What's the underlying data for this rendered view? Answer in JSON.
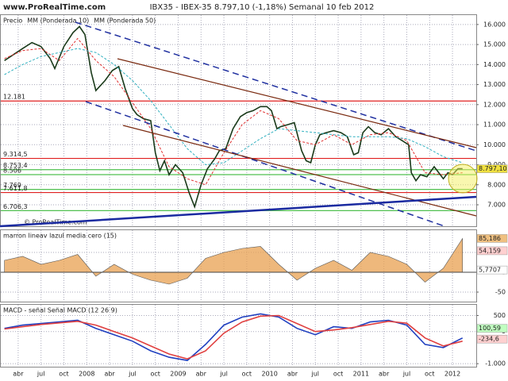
{
  "site": "www.ProRealTime.com",
  "header": "IBX35 - IBEX-35   8.797,10 (-1,18%)   Semanal  10 feb 2012",
  "watermark": "© ProRealTime.com",
  "chart_data": [
    {
      "type": "line",
      "ylim": [
        5930,
        16470
      ],
      "yticks": [
        {
          "value": 7000,
          "label": "7.000"
        },
        {
          "value": 8000,
          "label": "8.000"
        },
        {
          "value": 9000,
          "label": "9.000"
        },
        {
          "value": 10000,
          "label": "10.000"
        },
        {
          "value": 11000,
          "label": "11.000"
        },
        {
          "value": 12000,
          "label": "12.000"
        },
        {
          "value": 13000,
          "label": "13.000"
        },
        {
          "value": 14000,
          "label": "14.000"
        },
        {
          "value": 15000,
          "label": "15.000"
        },
        {
          "value": 16000,
          "label": "16.000"
        }
      ],
      "series": [
        {
          "name": "Precio",
          "color": "#1a3a1a",
          "x": [
            2007.1,
            2007.2,
            2007.3,
            2007.4,
            2007.5,
            2007.6,
            2007.65,
            2007.75,
            2007.85,
            2007.92,
            2007.98,
            2008.05,
            2008.1,
            2008.2,
            2008.28,
            2008.35,
            2008.42,
            2008.5,
            2008.55,
            2008.62,
            2008.7,
            2008.75,
            2008.8,
            2008.85,
            2008.9,
            2008.97,
            2009.05,
            2009.12,
            2009.18,
            2009.25,
            2009.32,
            2009.4,
            2009.45,
            2009.52,
            2009.6,
            2009.68,
            2009.75,
            2009.82,
            2009.9,
            2009.97,
            2010.02,
            2010.08,
            2010.12,
            2010.2,
            2010.27,
            2010.35,
            2010.4,
            2010.45,
            2010.5,
            2010.55,
            2010.62,
            2010.7,
            2010.78,
            2010.85,
            2010.92,
            2010.97,
            2011.02,
            2011.08,
            2011.15,
            2011.22,
            2011.3,
            2011.38,
            2011.45,
            2011.52,
            2011.55,
            2011.6,
            2011.65,
            2011.72,
            2011.8,
            2011.85,
            2011.9,
            2011.95,
            2012.0,
            2012.06,
            2012.11
          ],
          "values": [
            14200,
            14500,
            14800,
            15100,
            14900,
            14300,
            13800,
            14900,
            15600,
            15900,
            15500,
            13600,
            12700,
            13200,
            13700,
            13900,
            12800,
            11800,
            11500,
            11300,
            11200,
            9600,
            8700,
            9200,
            8500,
            9000,
            8600,
            7600,
            6900,
            8000,
            8800,
            9300,
            9700,
            9800,
            10800,
            11400,
            11600,
            11700,
            11900,
            11900,
            11700,
            10800,
            10900,
            11000,
            11100,
            9700,
            9200,
            9100,
            10000,
            10500,
            10600,
            10700,
            10600,
            10400,
            9500,
            9600,
            10600,
            10900,
            10600,
            10500,
            10800,
            10400,
            10200,
            10000,
            8600,
            8200,
            8500,
            8400,
            8900,
            8600,
            8300,
            8600,
            8500,
            8800,
            8797.1
          ]
        },
        {
          "name": "MM (Ponderada 10)",
          "color": "#e03030",
          "dash": true,
          "x": [
            2007.1,
            2007.3,
            2007.5,
            2007.7,
            2007.9,
            2008.1,
            2008.3,
            2008.5,
            2008.7,
            2008.9,
            2009.1,
            2009.3,
            2009.5,
            2009.7,
            2009.9,
            2010.1,
            2010.3,
            2010.5,
            2010.7,
            2010.9,
            2011.1,
            2011.3,
            2011.5,
            2011.7,
            2011.9,
            2012.11
          ],
          "values": [
            14300,
            14700,
            14800,
            14200,
            15300,
            14200,
            13400,
            12100,
            10800,
            8900,
            8300,
            8000,
            9600,
            11000,
            11700,
            11300,
            10200,
            10000,
            10500,
            10000,
            10500,
            10600,
            10200,
            8600,
            8500,
            8600
          ]
        },
        {
          "name": "MM (Ponderada 50)",
          "color": "#30b0c0",
          "dash": true,
          "x": [
            2007.1,
            2007.3,
            2007.5,
            2007.7,
            2007.9,
            2008.1,
            2008.3,
            2008.5,
            2008.7,
            2008.9,
            2009.1,
            2009.3,
            2009.5,
            2009.7,
            2009.9,
            2010.1,
            2010.3,
            2010.5,
            2010.7,
            2010.9,
            2011.1,
            2011.3,
            2011.5,
            2011.7,
            2011.9,
            2012.11
          ],
          "values": [
            13500,
            14000,
            14400,
            14600,
            14800,
            14600,
            14000,
            13200,
            12200,
            11000,
            9800,
            9000,
            9100,
            9700,
            10300,
            10800,
            10700,
            10600,
            10500,
            10400,
            10400,
            10400,
            10300,
            9900,
            9400,
            9100
          ]
        }
      ],
      "levels": [
        {
          "value": 12181,
          "label": "12.181",
          "color": "#e02020"
        },
        {
          "value": 9314.5,
          "label": "9.314,5",
          "color": "#e02020"
        },
        {
          "value": 8753.4,
          "label": "8.753,4",
          "color": "#50c050"
        },
        {
          "value": 8506,
          "label": "8.506",
          "color": "#50c050"
        },
        {
          "value": 7769,
          "label": "7.769",
          "color": "#50c050"
        },
        {
          "value": 7611.8,
          "label": "7.611,8",
          "color": "#e02020"
        },
        {
          "value": 6706.3,
          "label": "6.706,3",
          "color": "#50c050"
        }
      ],
      "markers": [
        {
          "value": 8797.1,
          "label": "8.797,10",
          "color": "#f0e040"
        }
      ]
    },
    {
      "type": "area",
      "title": "marron lineav lazul media cero (15)",
      "ylim": [
        -74,
        106
      ],
      "yticks": [
        -50,
        0,
        50
      ],
      "series": [
        {
          "color": "#e8a050",
          "x": [
            2007.1,
            2007.3,
            2007.5,
            2007.7,
            2007.9,
            2008.1,
            2008.3,
            2008.5,
            2008.7,
            2008.9,
            2009.1,
            2009.3,
            2009.5,
            2009.7,
            2009.9,
            2010.1,
            2010.3,
            2010.5,
            2010.7,
            2010.9,
            2011.1,
            2011.3,
            2011.5,
            2011.7,
            2011.9,
            2012.11
          ],
          "values": [
            30,
            40,
            20,
            30,
            45,
            -10,
            20,
            -5,
            -20,
            -30,
            -15,
            35,
            50,
            60,
            65,
            20,
            -20,
            10,
            30,
            5,
            50,
            40,
            20,
            -25,
            10,
            85
          ]
        }
      ],
      "markers": [
        {
          "value": 85.186,
          "label": "85,186",
          "color": "#f0c080"
        },
        {
          "value": 54.159,
          "label": "54,159",
          "color": "#ffd0d0"
        },
        {
          "value": 5.7707,
          "label": "5,7707",
          "color": "#ffffff"
        }
      ]
    },
    {
      "type": "line",
      "title": "MACD - señal Señal MACD (12 26 9)",
      "ylim": [
        -1095,
        833
      ],
      "yticks": [
        {
          "value": -1000,
          "label": "-1.000"
        },
        0,
        500
      ],
      "series": [
        {
          "color": "#2040c0",
          "x": [
            2007.1,
            2007.3,
            2007.5,
            2007.7,
            2007.9,
            2008.1,
            2008.3,
            2008.5,
            2008.7,
            2008.9,
            2009.1,
            2009.3,
            2009.5,
            2009.7,
            2009.9,
            2010.1,
            2010.3,
            2010.5,
            2010.7,
            2010.9,
            2011.1,
            2011.3,
            2011.5,
            2011.7,
            2011.9,
            2012.11
          ],
          "values": [
            100,
            200,
            250,
            300,
            350,
            100,
            -100,
            -300,
            -600,
            -800,
            -900,
            -400,
            200,
            450,
            550,
            450,
            100,
            -100,
            150,
            100,
            300,
            350,
            200,
            -400,
            -500,
            -200
          ]
        },
        {
          "color": "#e04040",
          "x": [
            2007.1,
            2007.3,
            2007.5,
            2007.7,
            2007.9,
            2008.1,
            2008.3,
            2008.5,
            2008.7,
            2008.9,
            2009.1,
            2009.3,
            2009.5,
            2009.7,
            2009.9,
            2010.1,
            2010.3,
            2010.5,
            2010.7,
            2010.9,
            2011.1,
            2011.3,
            2011.5,
            2011.7,
            2011.9,
            2012.11
          ],
          "values": [
            80,
            150,
            220,
            270,
            320,
            200,
            0,
            -200,
            -450,
            -700,
            -850,
            -600,
            -50,
            300,
            480,
            500,
            250,
            0,
            50,
            120,
            220,
            320,
            260,
            -200,
            -450,
            -300
          ]
        }
      ],
      "markers": [
        {
          "value": 100.59,
          "label": "100,59",
          "color": "#c0ffc0"
        },
        {
          "value": -234.6,
          "label": "-234,6",
          "color": "#ffd0d0"
        }
      ],
      "xlim": [
        2007.06,
        2012.26
      ],
      "xticks": [
        {
          "value": 2007.25,
          "label": "abr"
        },
        {
          "value": 2007.5,
          "label": "jul"
        },
        {
          "value": 2007.75,
          "label": "oct"
        },
        2008,
        {
          "value": 2008.25,
          "label": "abr"
        },
        {
          "value": 2008.5,
          "label": "jul"
        },
        {
          "value": 2008.75,
          "label": "oct"
        },
        2009,
        {
          "value": 2009.25,
          "label": "abr"
        },
        {
          "value": 2009.5,
          "label": "jul"
        },
        {
          "value": 2009.75,
          "label": "oct"
        },
        2010,
        {
          "value": 2010.25,
          "label": "abr"
        },
        {
          "value": 2010.5,
          "label": "jul"
        },
        {
          "value": 2010.75,
          "label": "oct"
        },
        2011,
        {
          "value": 2011.25,
          "label": "abr"
        },
        {
          "value": 2011.5,
          "label": "jul"
        },
        {
          "value": 2011.75,
          "label": "oct"
        },
        2012
      ]
    }
  ]
}
